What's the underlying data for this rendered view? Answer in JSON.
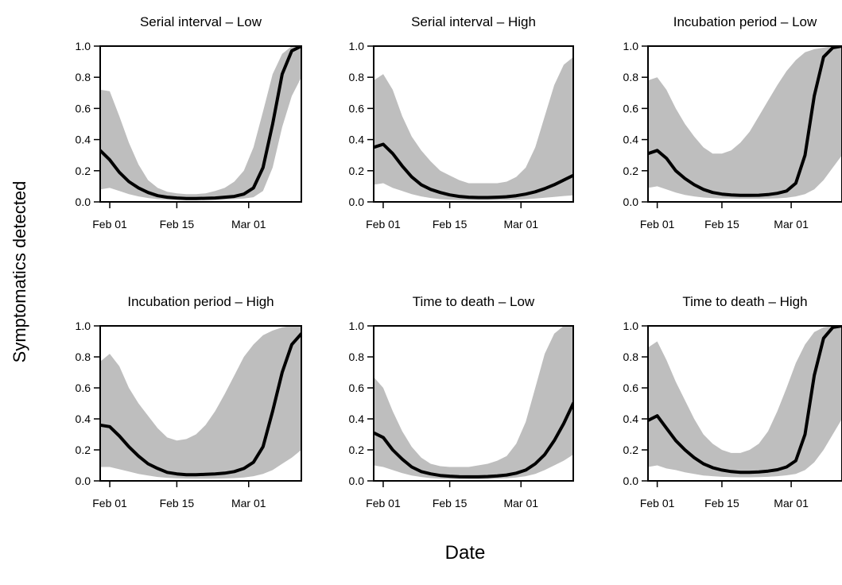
{
  "figure": {
    "ylabel": "Symptomatics detected",
    "xlabel": "Date"
  },
  "chart_data": [
    {
      "type": "line",
      "title": "Serial interval – Low",
      "xlabel": "",
      "ylabel": "",
      "x_type": "date",
      "xlim": [
        "2020-01-30",
        "2020-03-12"
      ],
      "ylim": [
        0,
        1
      ],
      "x_ticks": [
        "2020-02-01",
        "2020-02-15",
        "2020-03-01"
      ],
      "x_tick_labels": [
        "Feb 01",
        "Feb 15",
        "Mar 01"
      ],
      "y_ticks": [
        0.0,
        0.2,
        0.4,
        0.6,
        0.8,
        1.0
      ],
      "y_tick_labels": [
        "0.0",
        "0.2",
        "0.4",
        "0.6",
        "0.8",
        "1.0"
      ],
      "grid": false,
      "band_color": "#bebebe",
      "line_color": "#000000",
      "x": [
        "2020-01-30",
        "2020-02-01",
        "2020-02-03",
        "2020-02-05",
        "2020-02-07",
        "2020-02-09",
        "2020-02-11",
        "2020-02-13",
        "2020-02-15",
        "2020-02-17",
        "2020-02-19",
        "2020-02-21",
        "2020-02-23",
        "2020-02-25",
        "2020-02-27",
        "2020-02-29",
        "2020-03-02",
        "2020-03-04",
        "2020-03-06",
        "2020-03-08",
        "2020-03-10",
        "2020-03-12"
      ],
      "series": [
        {
          "role": "median",
          "values": [
            0.33,
            0.27,
            0.19,
            0.13,
            0.09,
            0.06,
            0.04,
            0.03,
            0.025,
            0.022,
            0.022,
            0.023,
            0.025,
            0.03,
            0.035,
            0.05,
            0.09,
            0.22,
            0.5,
            0.82,
            0.97,
            1.0
          ]
        },
        {
          "role": "upper",
          "values": [
            0.72,
            0.71,
            0.55,
            0.38,
            0.24,
            0.14,
            0.09,
            0.065,
            0.055,
            0.05,
            0.05,
            0.055,
            0.07,
            0.09,
            0.13,
            0.2,
            0.35,
            0.58,
            0.82,
            0.95,
            1.0,
            1.0
          ]
        },
        {
          "role": "lower",
          "values": [
            0.08,
            0.09,
            0.07,
            0.05,
            0.035,
            0.025,
            0.018,
            0.014,
            0.012,
            0.011,
            0.011,
            0.012,
            0.013,
            0.015,
            0.018,
            0.022,
            0.03,
            0.07,
            0.22,
            0.48,
            0.68,
            0.8
          ]
        }
      ]
    },
    {
      "type": "line",
      "title": "Serial interval – High",
      "xlabel": "",
      "ylabel": "",
      "x_type": "date",
      "xlim": [
        "2020-01-30",
        "2020-03-12"
      ],
      "ylim": [
        0,
        1
      ],
      "x_ticks": [
        "2020-02-01",
        "2020-02-15",
        "2020-03-01"
      ],
      "x_tick_labels": [
        "Feb 01",
        "Feb 15",
        "Mar 01"
      ],
      "y_ticks": [
        0.0,
        0.2,
        0.4,
        0.6,
        0.8,
        1.0
      ],
      "y_tick_labels": [
        "0.0",
        "0.2",
        "0.4",
        "0.6",
        "0.8",
        "1.0"
      ],
      "grid": false,
      "band_color": "#bebebe",
      "line_color": "#000000",
      "x": [
        "2020-01-30",
        "2020-02-01",
        "2020-02-03",
        "2020-02-05",
        "2020-02-07",
        "2020-02-09",
        "2020-02-11",
        "2020-02-13",
        "2020-02-15",
        "2020-02-17",
        "2020-02-19",
        "2020-02-21",
        "2020-02-23",
        "2020-02-25",
        "2020-02-27",
        "2020-02-29",
        "2020-03-02",
        "2020-03-04",
        "2020-03-06",
        "2020-03-08",
        "2020-03-10",
        "2020-03-12"
      ],
      "series": [
        {
          "role": "median",
          "values": [
            0.35,
            0.37,
            0.31,
            0.23,
            0.16,
            0.11,
            0.08,
            0.06,
            0.045,
            0.035,
            0.03,
            0.028,
            0.028,
            0.03,
            0.033,
            0.04,
            0.05,
            0.065,
            0.085,
            0.11,
            0.14,
            0.17
          ]
        },
        {
          "role": "upper",
          "values": [
            0.78,
            0.82,
            0.72,
            0.55,
            0.42,
            0.33,
            0.26,
            0.2,
            0.17,
            0.14,
            0.12,
            0.12,
            0.12,
            0.12,
            0.13,
            0.16,
            0.22,
            0.35,
            0.55,
            0.75,
            0.88,
            0.93
          ]
        },
        {
          "role": "lower",
          "values": [
            0.11,
            0.12,
            0.09,
            0.07,
            0.05,
            0.035,
            0.025,
            0.018,
            0.014,
            0.012,
            0.011,
            0.011,
            0.011,
            0.012,
            0.013,
            0.015,
            0.018,
            0.022,
            0.027,
            0.032,
            0.038,
            0.042
          ]
        }
      ]
    },
    {
      "type": "line",
      "title": "Incubation period – Low",
      "xlabel": "",
      "ylabel": "",
      "x_type": "date",
      "xlim": [
        "2020-01-30",
        "2020-03-12"
      ],
      "ylim": [
        0,
        1
      ],
      "x_ticks": [
        "2020-02-01",
        "2020-02-15",
        "2020-03-01"
      ],
      "x_tick_labels": [
        "Feb 01",
        "Feb 15",
        "Mar 01"
      ],
      "y_ticks": [
        0.0,
        0.2,
        0.4,
        0.6,
        0.8,
        1.0
      ],
      "y_tick_labels": [
        "0.0",
        "0.2",
        "0.4",
        "0.6",
        "0.8",
        "1.0"
      ],
      "grid": false,
      "band_color": "#bebebe",
      "line_color": "#000000",
      "x": [
        "2020-01-30",
        "2020-02-01",
        "2020-02-03",
        "2020-02-05",
        "2020-02-07",
        "2020-02-09",
        "2020-02-11",
        "2020-02-13",
        "2020-02-15",
        "2020-02-17",
        "2020-02-19",
        "2020-02-21",
        "2020-02-23",
        "2020-02-25",
        "2020-02-27",
        "2020-02-29",
        "2020-03-02",
        "2020-03-04",
        "2020-03-06",
        "2020-03-08",
        "2020-03-10",
        "2020-03-12"
      ],
      "series": [
        {
          "role": "median",
          "values": [
            0.31,
            0.33,
            0.28,
            0.2,
            0.15,
            0.11,
            0.08,
            0.06,
            0.05,
            0.045,
            0.042,
            0.042,
            0.043,
            0.047,
            0.055,
            0.07,
            0.12,
            0.3,
            0.68,
            0.93,
            0.99,
            1.0
          ]
        },
        {
          "role": "upper",
          "values": [
            0.78,
            0.8,
            0.72,
            0.6,
            0.5,
            0.42,
            0.35,
            0.31,
            0.31,
            0.33,
            0.38,
            0.45,
            0.55,
            0.65,
            0.75,
            0.84,
            0.91,
            0.96,
            0.98,
            0.99,
            1.0,
            1.0
          ]
        },
        {
          "role": "lower",
          "values": [
            0.09,
            0.1,
            0.08,
            0.06,
            0.045,
            0.035,
            0.028,
            0.024,
            0.022,
            0.021,
            0.02,
            0.02,
            0.02,
            0.021,
            0.023,
            0.027,
            0.035,
            0.05,
            0.08,
            0.14,
            0.22,
            0.3
          ]
        }
      ]
    },
    {
      "type": "line",
      "title": "Incubation period – High",
      "xlabel": "",
      "ylabel": "",
      "x_type": "date",
      "xlim": [
        "2020-01-30",
        "2020-03-12"
      ],
      "ylim": [
        0,
        1
      ],
      "x_ticks": [
        "2020-02-01",
        "2020-02-15",
        "2020-03-01"
      ],
      "x_tick_labels": [
        "Feb 01",
        "Feb 15",
        "Mar 01"
      ],
      "y_ticks": [
        0.0,
        0.2,
        0.4,
        0.6,
        0.8,
        1.0
      ],
      "y_tick_labels": [
        "0.0",
        "0.2",
        "0.4",
        "0.6",
        "0.8",
        "1.0"
      ],
      "grid": false,
      "band_color": "#bebebe",
      "line_color": "#000000",
      "x": [
        "2020-01-30",
        "2020-02-01",
        "2020-02-03",
        "2020-02-05",
        "2020-02-07",
        "2020-02-09",
        "2020-02-11",
        "2020-02-13",
        "2020-02-15",
        "2020-02-17",
        "2020-02-19",
        "2020-02-21",
        "2020-02-23",
        "2020-02-25",
        "2020-02-27",
        "2020-02-29",
        "2020-03-02",
        "2020-03-04",
        "2020-03-06",
        "2020-03-08",
        "2020-03-10",
        "2020-03-12"
      ],
      "series": [
        {
          "role": "median",
          "values": [
            0.36,
            0.35,
            0.29,
            0.22,
            0.16,
            0.11,
            0.08,
            0.055,
            0.045,
            0.04,
            0.04,
            0.042,
            0.045,
            0.05,
            0.06,
            0.08,
            0.12,
            0.22,
            0.45,
            0.7,
            0.88,
            0.95
          ]
        },
        {
          "role": "upper",
          "values": [
            0.77,
            0.82,
            0.74,
            0.6,
            0.5,
            0.42,
            0.34,
            0.28,
            0.26,
            0.27,
            0.3,
            0.36,
            0.45,
            0.56,
            0.68,
            0.8,
            0.88,
            0.94,
            0.97,
            0.99,
            1.0,
            1.0
          ]
        },
        {
          "role": "lower",
          "values": [
            0.09,
            0.09,
            0.075,
            0.06,
            0.045,
            0.035,
            0.025,
            0.02,
            0.017,
            0.015,
            0.014,
            0.014,
            0.015,
            0.016,
            0.018,
            0.022,
            0.03,
            0.045,
            0.07,
            0.11,
            0.15,
            0.2
          ]
        }
      ]
    },
    {
      "type": "line",
      "title": "Time to death – Low",
      "xlabel": "",
      "ylabel": "",
      "x_type": "date",
      "xlim": [
        "2020-01-30",
        "2020-03-12"
      ],
      "ylim": [
        0,
        1
      ],
      "x_ticks": [
        "2020-02-01",
        "2020-02-15",
        "2020-03-01"
      ],
      "x_tick_labels": [
        "Feb 01",
        "Feb 15",
        "Mar 01"
      ],
      "y_ticks": [
        0.0,
        0.2,
        0.4,
        0.6,
        0.8,
        1.0
      ],
      "y_tick_labels": [
        "0.0",
        "0.2",
        "0.4",
        "0.6",
        "0.8",
        "1.0"
      ],
      "grid": false,
      "band_color": "#bebebe",
      "line_color": "#000000",
      "x": [
        "2020-01-30",
        "2020-02-01",
        "2020-02-03",
        "2020-02-05",
        "2020-02-07",
        "2020-02-09",
        "2020-02-11",
        "2020-02-13",
        "2020-02-15",
        "2020-02-17",
        "2020-02-19",
        "2020-02-21",
        "2020-02-23",
        "2020-02-25",
        "2020-02-27",
        "2020-02-29",
        "2020-03-02",
        "2020-03-04",
        "2020-03-06",
        "2020-03-08",
        "2020-03-10",
        "2020-03-12"
      ],
      "series": [
        {
          "role": "median",
          "values": [
            0.31,
            0.28,
            0.2,
            0.14,
            0.09,
            0.06,
            0.045,
            0.035,
            0.03,
            0.027,
            0.026,
            0.026,
            0.028,
            0.032,
            0.038,
            0.05,
            0.07,
            0.11,
            0.17,
            0.26,
            0.37,
            0.5
          ]
        },
        {
          "role": "upper",
          "values": [
            0.67,
            0.6,
            0.45,
            0.32,
            0.22,
            0.15,
            0.11,
            0.095,
            0.09,
            0.09,
            0.09,
            0.1,
            0.11,
            0.13,
            0.16,
            0.24,
            0.38,
            0.6,
            0.82,
            0.95,
            1.0,
            1.0
          ]
        },
        {
          "role": "lower",
          "values": [
            0.1,
            0.09,
            0.07,
            0.05,
            0.035,
            0.025,
            0.018,
            0.014,
            0.012,
            0.011,
            0.011,
            0.011,
            0.012,
            0.014,
            0.017,
            0.022,
            0.03,
            0.045,
            0.07,
            0.1,
            0.13,
            0.17
          ]
        }
      ]
    },
    {
      "type": "line",
      "title": "Time to death – High",
      "xlabel": "",
      "ylabel": "",
      "x_type": "date",
      "xlim": [
        "2020-01-30",
        "2020-03-12"
      ],
      "ylim": [
        0,
        1
      ],
      "x_ticks": [
        "2020-02-01",
        "2020-02-15",
        "2020-03-01"
      ],
      "x_tick_labels": [
        "Feb 01",
        "Feb 15",
        "Mar 01"
      ],
      "y_ticks": [
        0.0,
        0.2,
        0.4,
        0.6,
        0.8,
        1.0
      ],
      "y_tick_labels": [
        "0.0",
        "0.2",
        "0.4",
        "0.6",
        "0.8",
        "1.0"
      ],
      "grid": false,
      "band_color": "#bebebe",
      "line_color": "#000000",
      "x": [
        "2020-01-30",
        "2020-02-01",
        "2020-02-03",
        "2020-02-05",
        "2020-02-07",
        "2020-02-09",
        "2020-02-11",
        "2020-02-13",
        "2020-02-15",
        "2020-02-17",
        "2020-02-19",
        "2020-02-21",
        "2020-02-23",
        "2020-02-25",
        "2020-02-27",
        "2020-02-29",
        "2020-03-02",
        "2020-03-04",
        "2020-03-06",
        "2020-03-08",
        "2020-03-10",
        "2020-03-12"
      ],
      "series": [
        {
          "role": "median",
          "values": [
            0.39,
            0.42,
            0.34,
            0.26,
            0.2,
            0.15,
            0.11,
            0.085,
            0.07,
            0.06,
            0.055,
            0.055,
            0.058,
            0.063,
            0.072,
            0.09,
            0.13,
            0.3,
            0.68,
            0.92,
            0.99,
            1.0
          ]
        },
        {
          "role": "upper",
          "values": [
            0.86,
            0.9,
            0.78,
            0.64,
            0.52,
            0.4,
            0.3,
            0.24,
            0.2,
            0.18,
            0.18,
            0.2,
            0.24,
            0.32,
            0.45,
            0.6,
            0.76,
            0.88,
            0.96,
            0.99,
            1.0,
            1.0
          ]
        },
        {
          "role": "lower",
          "values": [
            0.09,
            0.1,
            0.08,
            0.07,
            0.055,
            0.045,
            0.035,
            0.03,
            0.026,
            0.024,
            0.023,
            0.023,
            0.024,
            0.026,
            0.03,
            0.036,
            0.045,
            0.07,
            0.12,
            0.2,
            0.3,
            0.4
          ]
        }
      ]
    }
  ]
}
